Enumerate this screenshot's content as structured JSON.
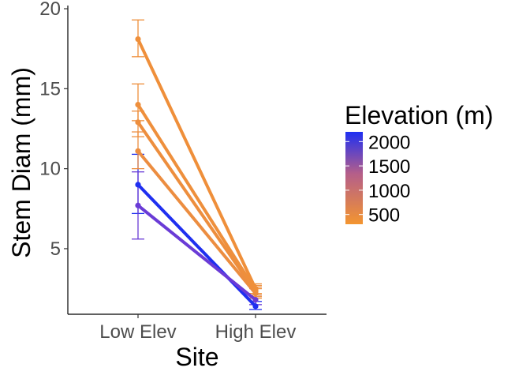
{
  "chart_data": {
    "type": "line",
    "xlabel": "Site",
    "ylabel": "Stem Diam (mm)",
    "categories": [
      "Low Elev",
      "High Elev"
    ],
    "ylim": [
      0.9,
      20.2
    ],
    "yticks": [
      5,
      10,
      15,
      20
    ],
    "grid": false,
    "legend": {
      "title": "Elevation (m)",
      "placement": "right",
      "type": "colorbar",
      "range": [
        300,
        2200
      ],
      "ticks": [
        2000,
        1500,
        1000,
        500
      ],
      "colors": {
        "low": "#f39530",
        "high": "#1e2ff2"
      }
    },
    "series": [
      {
        "elevation": 400,
        "color": "#ef8f3a",
        "values": [
          18.1,
          2.5
        ],
        "err_low": [
          17.0,
          2.2
        ],
        "err_high": [
          19.3,
          2.8
        ]
      },
      {
        "elevation": 450,
        "color": "#ee8f3c",
        "values": [
          14.0,
          2.4
        ],
        "err_low": [
          13.0,
          2.1
        ],
        "err_high": [
          15.3,
          2.7
        ]
      },
      {
        "elevation": 500,
        "color": "#ed8e3e",
        "values": [
          12.9,
          2.3
        ],
        "err_low": [
          12.0,
          2.0
        ],
        "err_high": [
          13.6,
          2.6
        ]
      },
      {
        "elevation": 550,
        "color": "#ec8d40",
        "values": [
          11.1,
          2.2
        ],
        "err_low": [
          10.0,
          1.9
        ],
        "err_high": [
          12.3,
          2.5
        ]
      },
      {
        "elevation": 1850,
        "color": "#6a3bd6",
        "values": [
          7.7,
          1.8
        ],
        "err_low": [
          5.6,
          1.5
        ],
        "err_high": [
          9.8,
          2.1
        ]
      },
      {
        "elevation": 2150,
        "color": "#1f2ff0",
        "values": [
          9.0,
          1.4
        ],
        "err_low": [
          7.2,
          1.2
        ],
        "err_high": [
          10.9,
          1.7
        ]
      }
    ]
  }
}
